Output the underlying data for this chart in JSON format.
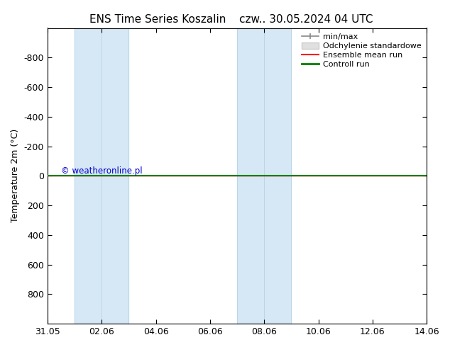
{
  "title_left": "ENS Time Series Koszalin",
  "title_right": "czw.. 30.05.2024 04 UTC",
  "ylabel": "Temperature 2m (°C)",
  "ylim": [
    -1000,
    1000
  ],
  "yticks": [
    -800,
    -600,
    -400,
    -200,
    0,
    200,
    400,
    600,
    800
  ],
  "xtick_labels": [
    "31.05",
    "02.06",
    "04.06",
    "06.06",
    "08.06",
    "10.06",
    "12.06",
    "14.06"
  ],
  "xtick_positions": [
    0,
    2,
    4,
    6,
    8,
    10,
    12,
    14
  ],
  "shaded_regions": [
    [
      1,
      2,
      "#d6e8f5"
    ],
    [
      2,
      3,
      "#d6e8f5"
    ],
    [
      7,
      8,
      "#d6e8f5"
    ],
    [
      8,
      9,
      "#d6e8f5"
    ]
  ],
  "shaded_color": "#d6e8f5",
  "line_y": 0,
  "control_run_color": "#008000",
  "ensemble_mean_color": "#ff0000",
  "watermark_text": "© weatheronline.pl",
  "watermark_color": "#0000cc",
  "bg_color": "#ffffff",
  "plot_bg_color": "#ffffff",
  "border_color": "#000000",
  "tick_color": "#000000",
  "font_size": 9,
  "title_font_size": 11,
  "legend_minmax_color": "#888888",
  "legend_std_color": "#cccccc"
}
